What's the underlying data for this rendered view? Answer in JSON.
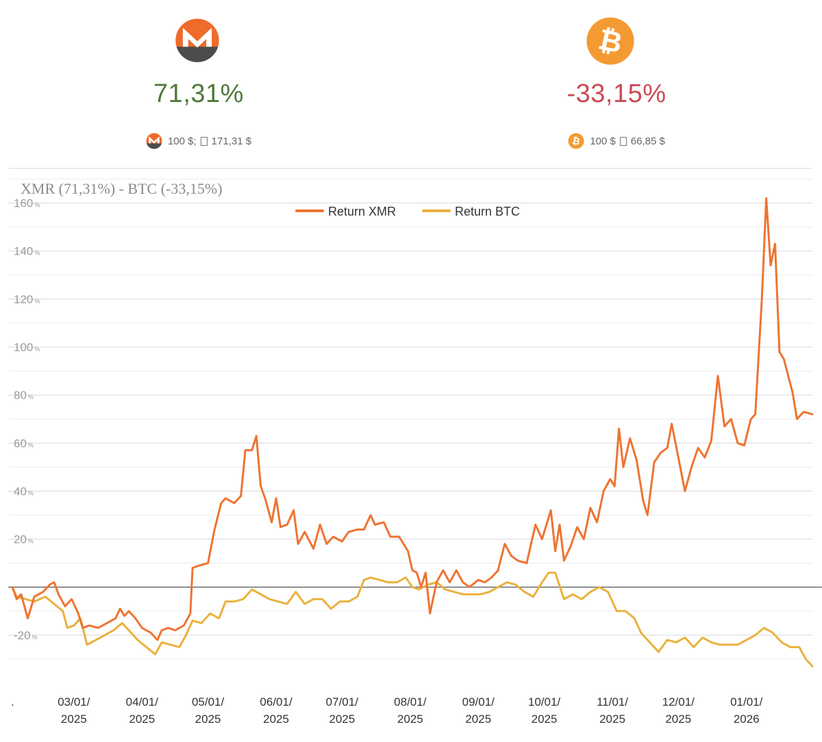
{
  "header": {
    "xmr": {
      "icon": "monero-logo-icon",
      "return_pct": "71,31%",
      "invest_from": "100 $;",
      "invest_to": "171,31 $",
      "color": "#4d7a3a"
    },
    "btc": {
      "icon": "bitcoin-logo-icon",
      "return_pct": "-33,15%",
      "invest_from": "100 $",
      "invest_to": "66,85 $",
      "color": "#cc4a55"
    }
  },
  "chart_data": {
    "type": "line",
    "title": "XMR (71,31%) - BTC (-33,15%)",
    "xlabel": "",
    "ylabel": "",
    "y_unit": "%",
    "ylim": [
      -40,
      175
    ],
    "yticks": [
      -20,
      20,
      40,
      60,
      80,
      100,
      120,
      140,
      160
    ],
    "reference_line": 0,
    "grid": true,
    "legend": "top-center",
    "x_range": [
      "2025-02-01",
      "2026-01-31"
    ],
    "x_tick_first": ".",
    "x_ticks": [
      {
        "date": "2025-03-01",
        "label": [
          "03/01/",
          "2025"
        ]
      },
      {
        "date": "2025-04-01",
        "label": [
          "04/01/",
          "2025"
        ]
      },
      {
        "date": "2025-05-01",
        "label": [
          "05/01/",
          "2025"
        ]
      },
      {
        "date": "2025-06-01",
        "label": [
          "06/01/",
          "2025"
        ]
      },
      {
        "date": "2025-07-01",
        "label": [
          "07/01/",
          "2025"
        ]
      },
      {
        "date": "2025-08-01",
        "label": [
          "08/01/",
          "2025"
        ]
      },
      {
        "date": "2025-09-01",
        "label": [
          "09/01/",
          "2025"
        ]
      },
      {
        "date": "2025-10-01",
        "label": [
          "10/01/",
          "2025"
        ]
      },
      {
        "date": "2025-11-01",
        "label": [
          "11/01/",
          "2025"
        ]
      },
      {
        "date": "2025-12-01",
        "label": [
          "12/01/",
          "2025"
        ]
      },
      {
        "date": "2026-01-01",
        "label": [
          "01/01/",
          "2026"
        ]
      }
    ],
    "series": [
      {
        "name": "Return XMR",
        "color": "#ef7330",
        "points": [
          [
            "2025-02-01",
            0
          ],
          [
            "2025-02-03",
            -5
          ],
          [
            "2025-02-05",
            -3
          ],
          [
            "2025-02-08",
            -13
          ],
          [
            "2025-02-11",
            -4
          ],
          [
            "2025-02-15",
            -2
          ],
          [
            "2025-02-18",
            1
          ],
          [
            "2025-02-20",
            2
          ],
          [
            "2025-02-22",
            -3
          ],
          [
            "2025-02-25",
            -8
          ],
          [
            "2025-02-28",
            -5
          ],
          [
            "2025-03-03",
            -11
          ],
          [
            "2025-03-05",
            -17
          ],
          [
            "2025-03-08",
            -16
          ],
          [
            "2025-03-12",
            -17
          ],
          [
            "2025-03-16",
            -15
          ],
          [
            "2025-03-20",
            -13
          ],
          [
            "2025-03-22",
            -9
          ],
          [
            "2025-03-24",
            -12
          ],
          [
            "2025-03-26",
            -10
          ],
          [
            "2025-03-29",
            -13
          ],
          [
            "2025-04-01",
            -17
          ],
          [
            "2025-04-05",
            -19
          ],
          [
            "2025-04-08",
            -22
          ],
          [
            "2025-04-10",
            -18
          ],
          [
            "2025-04-13",
            -17
          ],
          [
            "2025-04-16",
            -18
          ],
          [
            "2025-04-20",
            -16
          ],
          [
            "2025-04-23",
            -11
          ],
          [
            "2025-04-24",
            8
          ],
          [
            "2025-04-27",
            9
          ],
          [
            "2025-05-01",
            10
          ],
          [
            "2025-05-04",
            24
          ],
          [
            "2025-05-07",
            35
          ],
          [
            "2025-05-09",
            37
          ],
          [
            "2025-05-13",
            35
          ],
          [
            "2025-05-16",
            38
          ],
          [
            "2025-05-18",
            57
          ],
          [
            "2025-05-21",
            57
          ],
          [
            "2025-05-23",
            63
          ],
          [
            "2025-05-25",
            42
          ],
          [
            "2025-05-27",
            37
          ],
          [
            "2025-05-30",
            27
          ],
          [
            "2025-06-01",
            37
          ],
          [
            "2025-06-03",
            25
          ],
          [
            "2025-06-06",
            26
          ],
          [
            "2025-06-09",
            32
          ],
          [
            "2025-06-11",
            18
          ],
          [
            "2025-06-14",
            23
          ],
          [
            "2025-06-18",
            16
          ],
          [
            "2025-06-21",
            26
          ],
          [
            "2025-06-24",
            18
          ],
          [
            "2025-06-27",
            21
          ],
          [
            "2025-07-01",
            19
          ],
          [
            "2025-07-04",
            23
          ],
          [
            "2025-07-08",
            24
          ],
          [
            "2025-07-11",
            24
          ],
          [
            "2025-07-14",
            30
          ],
          [
            "2025-07-16",
            26
          ],
          [
            "2025-07-20",
            27
          ],
          [
            "2025-07-23",
            21
          ],
          [
            "2025-07-27",
            21
          ],
          [
            "2025-07-31",
            15
          ],
          [
            "2025-08-02",
            7
          ],
          [
            "2025-08-04",
            6
          ],
          [
            "2025-08-06",
            0
          ],
          [
            "2025-08-08",
            6
          ],
          [
            "2025-08-10",
            -11
          ],
          [
            "2025-08-13",
            2
          ],
          [
            "2025-08-16",
            7
          ],
          [
            "2025-08-19",
            2
          ],
          [
            "2025-08-22",
            7
          ],
          [
            "2025-08-25",
            2
          ],
          [
            "2025-08-28",
            0
          ],
          [
            "2025-09-01",
            3
          ],
          [
            "2025-09-04",
            2
          ],
          [
            "2025-09-07",
            4
          ],
          [
            "2025-09-10",
            7
          ],
          [
            "2025-09-13",
            18
          ],
          [
            "2025-09-16",
            13
          ],
          [
            "2025-09-19",
            11
          ],
          [
            "2025-09-23",
            10
          ],
          [
            "2025-09-27",
            26
          ],
          [
            "2025-09-30",
            20
          ],
          [
            "2025-10-04",
            32
          ],
          [
            "2025-10-06",
            15
          ],
          [
            "2025-10-08",
            26
          ],
          [
            "2025-10-10",
            11
          ],
          [
            "2025-10-13",
            17
          ],
          [
            "2025-10-16",
            25
          ],
          [
            "2025-10-19",
            20
          ],
          [
            "2025-10-22",
            33
          ],
          [
            "2025-10-25",
            27
          ],
          [
            "2025-10-28",
            40
          ],
          [
            "2025-10-31",
            45
          ],
          [
            "2025-11-02",
            42
          ],
          [
            "2025-11-04",
            66
          ],
          [
            "2025-11-06",
            50
          ],
          [
            "2025-11-09",
            62
          ],
          [
            "2025-11-12",
            53
          ],
          [
            "2025-11-15",
            36
          ],
          [
            "2025-11-17",
            30
          ],
          [
            "2025-11-20",
            52
          ],
          [
            "2025-11-23",
            56
          ],
          [
            "2025-11-26",
            58
          ],
          [
            "2025-11-28",
            68
          ],
          [
            "2025-12-01",
            54
          ],
          [
            "2025-12-04",
            40
          ],
          [
            "2025-12-07",
            50
          ],
          [
            "2025-12-10",
            58
          ],
          [
            "2025-12-13",
            54
          ],
          [
            "2025-12-16",
            61
          ],
          [
            "2025-12-19",
            88
          ],
          [
            "2025-12-22",
            67
          ],
          [
            "2025-12-25",
            70
          ],
          [
            "2025-12-28",
            60
          ],
          [
            "2025-12-31",
            59
          ],
          [
            "2026-01-03",
            70
          ],
          [
            "2026-01-05",
            72
          ],
          [
            "2026-01-08",
            120
          ],
          [
            "2026-01-10",
            162
          ],
          [
            "2026-01-12",
            134
          ],
          [
            "2026-01-14",
            143
          ],
          [
            "2026-01-16",
            98
          ],
          [
            "2026-01-18",
            95
          ],
          [
            "2026-01-22",
            81
          ],
          [
            "2026-01-24",
            70
          ],
          [
            "2026-01-27",
            73
          ],
          [
            "2026-01-31",
            72
          ]
        ]
      },
      {
        "name": "Return BTC",
        "color": "#eab13c",
        "points": [
          [
            "2025-02-01",
            0
          ],
          [
            "2025-02-03",
            -4
          ],
          [
            "2025-02-07",
            -5
          ],
          [
            "2025-02-11",
            -6
          ],
          [
            "2025-02-16",
            -4
          ],
          [
            "2025-02-20",
            -7
          ],
          [
            "2025-02-24",
            -10
          ],
          [
            "2025-02-26",
            -17
          ],
          [
            "2025-03-01",
            -16
          ],
          [
            "2025-03-04",
            -13
          ],
          [
            "2025-03-07",
            -24
          ],
          [
            "2025-03-11",
            -22
          ],
          [
            "2025-03-15",
            -20
          ],
          [
            "2025-03-19",
            -18
          ],
          [
            "2025-03-23",
            -15
          ],
          [
            "2025-03-26",
            -18
          ],
          [
            "2025-03-30",
            -22
          ],
          [
            "2025-04-03",
            -25
          ],
          [
            "2025-04-07",
            -28
          ],
          [
            "2025-04-10",
            -23
          ],
          [
            "2025-04-14",
            -24
          ],
          [
            "2025-04-18",
            -25
          ],
          [
            "2025-04-21",
            -20
          ],
          [
            "2025-04-24",
            -14
          ],
          [
            "2025-04-28",
            -15
          ],
          [
            "2025-05-02",
            -11
          ],
          [
            "2025-05-06",
            -13
          ],
          [
            "2025-05-09",
            -6
          ],
          [
            "2025-05-13",
            -6
          ],
          [
            "2025-05-17",
            -5
          ],
          [
            "2025-05-21",
            -1
          ],
          [
            "2025-05-25",
            -3
          ],
          [
            "2025-05-29",
            -5
          ],
          [
            "2025-06-02",
            -6
          ],
          [
            "2025-06-06",
            -7
          ],
          [
            "2025-06-10",
            -2
          ],
          [
            "2025-06-14",
            -7
          ],
          [
            "2025-06-18",
            -5
          ],
          [
            "2025-06-22",
            -5
          ],
          [
            "2025-06-26",
            -9
          ],
          [
            "2025-06-30",
            -6
          ],
          [
            "2025-07-04",
            -6
          ],
          [
            "2025-07-08",
            -4
          ],
          [
            "2025-07-11",
            3
          ],
          [
            "2025-07-14",
            4
          ],
          [
            "2025-07-18",
            3
          ],
          [
            "2025-07-22",
            2
          ],
          [
            "2025-07-26",
            2
          ],
          [
            "2025-07-30",
            4
          ],
          [
            "2025-08-02",
            0
          ],
          [
            "2025-08-05",
            -1
          ],
          [
            "2025-08-09",
            1
          ],
          [
            "2025-08-13",
            2
          ],
          [
            "2025-08-17",
            -1
          ],
          [
            "2025-08-21",
            -2
          ],
          [
            "2025-08-25",
            -3
          ],
          [
            "2025-08-29",
            -3
          ],
          [
            "2025-09-02",
            -3
          ],
          [
            "2025-09-06",
            -2
          ],
          [
            "2025-09-10",
            0
          ],
          [
            "2025-09-14",
            2
          ],
          [
            "2025-09-18",
            1
          ],
          [
            "2025-09-22",
            -2
          ],
          [
            "2025-09-26",
            -4
          ],
          [
            "2025-09-30",
            2
          ],
          [
            "2025-10-03",
            6
          ],
          [
            "2025-10-06",
            6
          ],
          [
            "2025-10-10",
            -5
          ],
          [
            "2025-10-14",
            -3
          ],
          [
            "2025-10-18",
            -5
          ],
          [
            "2025-10-22",
            -2
          ],
          [
            "2025-10-26",
            0
          ],
          [
            "2025-10-30",
            -2
          ],
          [
            "2025-11-03",
            -10
          ],
          [
            "2025-11-07",
            -10
          ],
          [
            "2025-11-11",
            -13
          ],
          [
            "2025-11-14",
            -19
          ],
          [
            "2025-11-18",
            -23
          ],
          [
            "2025-11-22",
            -27
          ],
          [
            "2025-11-26",
            -22
          ],
          [
            "2025-11-30",
            -23
          ],
          [
            "2025-12-04",
            -21
          ],
          [
            "2025-12-08",
            -25
          ],
          [
            "2025-12-12",
            -21
          ],
          [
            "2025-12-16",
            -23
          ],
          [
            "2025-12-20",
            -24
          ],
          [
            "2025-12-24",
            -24
          ],
          [
            "2025-12-28",
            -24
          ],
          [
            "2026-01-01",
            -22
          ],
          [
            "2026-01-05",
            -20
          ],
          [
            "2026-01-09",
            -17
          ],
          [
            "2026-01-13",
            -19
          ],
          [
            "2026-01-17",
            -23
          ],
          [
            "2026-01-21",
            -25
          ],
          [
            "2026-01-25",
            -25
          ],
          [
            "2026-01-28",
            -30
          ],
          [
            "2026-01-31",
            -33
          ]
        ]
      }
    ]
  }
}
